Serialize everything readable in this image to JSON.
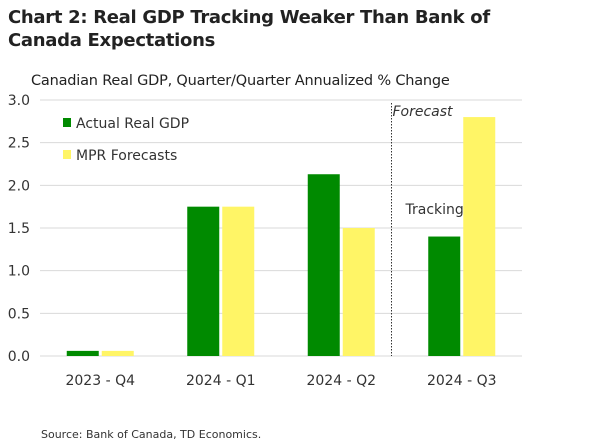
{
  "chart_data": {
    "type": "bar",
    "title": "Chart 2: Real GDP Tracking Weaker Than Bank of Canada Expectations",
    "subtitle": "Canadian Real GDP, Quarter/Quarter Annualized % Change",
    "xlabel": "",
    "ylabel": "",
    "ylim": [
      0,
      3.0
    ],
    "yticks": [
      "0.0",
      "0.5",
      "1.0",
      "1.5",
      "2.0",
      "2.5",
      "3.0"
    ],
    "grid": true,
    "legend_position": "top-left",
    "categories": [
      "2023 - Q4",
      "2024 - Q1",
      "2024 - Q2",
      "2024 - Q3"
    ],
    "series": [
      {
        "name": "Actual Real GDP",
        "color": "#008a00",
        "values": [
          0.06,
          1.75,
          2.13,
          1.4
        ]
      },
      {
        "name": "MPR Forecasts",
        "color": "#fff566",
        "values": [
          0.06,
          1.75,
          1.5,
          2.8
        ]
      }
    ],
    "annotations": {
      "forecast": "Forecast",
      "tracking": "Tracking"
    },
    "source": "Source: Bank of Canada, TD Economics."
  }
}
